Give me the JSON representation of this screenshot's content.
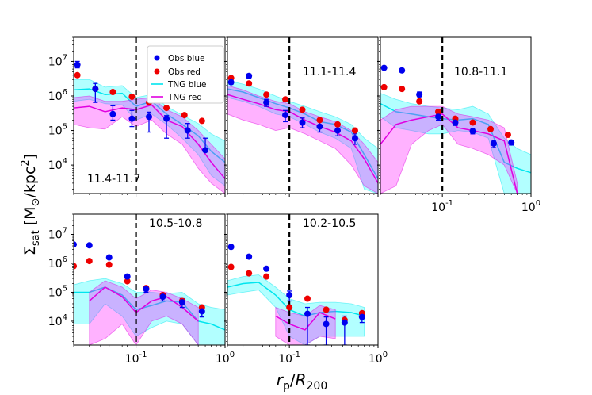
{
  "figure": {
    "ylabel_main": "Σ",
    "ylabel_sub": "sat",
    "ylabel_unit_open": " [M",
    "ylabel_sun": "⊙",
    "ylabel_unit_mid": "/kpc",
    "ylabel_exp": "2",
    "ylabel_unit_close": "]",
    "xlabel_r": "r",
    "xlabel_p": "p",
    "xlabel_slash": "/",
    "xlabel_R": "R",
    "xlabel_200": "200"
  },
  "legend": {
    "obs_blue": "Obs blue",
    "obs_red": "Obs red",
    "tng_blue": "TNG blue",
    "tng_red": "TNG red"
  },
  "colors": {
    "obs_blue": "#0000ee",
    "obs_red": "#ee0000",
    "tng_blue": "#00e5ee",
    "tng_red": "#e000e0",
    "tng_blue_fill": "#00ffff",
    "tng_red_fill": "#ff00ff"
  },
  "chart_data": [
    {
      "type": "line",
      "label": "11.4-11.7",
      "xlim": [
        0.02,
        1.0
      ],
      "ylim": [
        1500,
        50000000
      ],
      "xscale": "log",
      "yscale": "log",
      "vline_x": 0.1,
      "y_ticks": [
        "10^7",
        "10^6",
        "10^5",
        "10^4"
      ],
      "x_ticks": [],
      "obs_blue": {
        "x": [
          0.022,
          0.035,
          0.055,
          0.09,
          0.14,
          0.22,
          0.38,
          0.6
        ],
        "y": [
          8000000,
          1600000,
          300000,
          220000,
          250000,
          220000,
          100000,
          27000
        ],
        "err_lo": [
          6500000,
          650000,
          200000,
          130000,
          90000,
          60000,
          60000,
          25000
        ],
        "err_hi": [
          10000000,
          2300000,
          520000,
          380000,
          340000,
          270000,
          160000,
          60000
        ]
      },
      "obs_red": {
        "x": [
          0.022,
          0.035,
          0.055,
          0.09,
          0.14,
          0.22,
          0.35,
          0.55
        ],
        "y": [
          4000000,
          1600000,
          1300000,
          950000,
          650000,
          450000,
          280000,
          190000
        ]
      },
      "tng_blue": {
        "x": [
          0.02,
          0.03,
          0.045,
          0.07,
          0.1,
          0.15,
          0.22,
          0.33,
          0.5,
          0.7,
          1.0
        ],
        "y": [
          1500000,
          1600000,
          1100000,
          1200000,
          500000,
          700000,
          300000,
          150000,
          70000,
          25000,
          12000
        ],
        "lo": [
          700000,
          800000,
          600000,
          550000,
          200000,
          300000,
          150000,
          60000,
          20000,
          5000,
          2500
        ],
        "hi": [
          3000000,
          3000000,
          1800000,
          2000000,
          900000,
          1100000,
          500000,
          280000,
          160000,
          80000,
          50000
        ]
      },
      "tng_red": {
        "x": [
          0.02,
          0.03,
          0.045,
          0.07,
          0.1,
          0.15,
          0.22,
          0.33,
          0.5,
          0.7,
          1.0
        ],
        "y": [
          450000,
          500000,
          350000,
          450000,
          400000,
          550000,
          200000,
          130000,
          40000,
          12000,
          4000
        ],
        "lo": [
          150000,
          120000,
          110000,
          250000,
          130000,
          200000,
          80000,
          40000,
          8000,
          3000,
          1500
        ],
        "hi": [
          900000,
          1000000,
          700000,
          700000,
          800000,
          900000,
          400000,
          250000,
          100000,
          40000,
          15000
        ]
      }
    },
    {
      "type": "line",
      "label": "11.1-11.4",
      "xlim": [
        0.02,
        1.0
      ],
      "ylim": [
        1500,
        50000000
      ],
      "xscale": "log",
      "yscale": "log",
      "vline_x": 0.1,
      "y_ticks": [],
      "x_ticks": [],
      "obs_blue": {
        "x": [
          0.022,
          0.035,
          0.055,
          0.09,
          0.14,
          0.22,
          0.35,
          0.55
        ],
        "y": [
          2500000,
          3800000,
          650000,
          280000,
          170000,
          130000,
          100000,
          60000
        ],
        "err_lo": [
          2200000,
          3300000,
          500000,
          180000,
          120000,
          90000,
          70000,
          40000
        ],
        "err_hi": [
          2900000,
          4300000,
          800000,
          380000,
          230000,
          180000,
          140000,
          80000
        ]
      },
      "obs_red": {
        "x": [
          0.022,
          0.035,
          0.055,
          0.09,
          0.14,
          0.22,
          0.35,
          0.55
        ],
        "y": [
          3300000,
          2300000,
          1100000,
          800000,
          400000,
          200000,
          150000,
          100000
        ]
      },
      "tng_blue": {
        "x": [
          0.02,
          0.03,
          0.045,
          0.07,
          0.1,
          0.15,
          0.22,
          0.33,
          0.5,
          0.7,
          1.0
        ],
        "y": [
          1600000,
          1300000,
          900000,
          600000,
          450000,
          300000,
          180000,
          150000,
          90000,
          20000,
          4000
        ],
        "lo": [
          900000,
          700000,
          500000,
          300000,
          250000,
          150000,
          90000,
          60000,
          30000,
          2000,
          1500
        ],
        "hi": [
          2800000,
          2200000,
          1600000,
          1000000,
          700000,
          500000,
          350000,
          250000,
          150000,
          60000,
          30000
        ]
      },
      "tng_red": {
        "x": [
          0.02,
          0.03,
          0.045,
          0.07,
          0.1,
          0.15,
          0.22,
          0.33,
          0.5,
          0.7,
          1.0
        ],
        "y": [
          1100000,
          800000,
          600000,
          400000,
          350000,
          200000,
          130000,
          90000,
          50000,
          15000,
          3000
        ],
        "lo": [
          300000,
          200000,
          150000,
          100000,
          120000,
          80000,
          50000,
          30000,
          10000,
          2500,
          1500
        ],
        "hi": [
          2000000,
          1500000,
          1000000,
          700000,
          600000,
          350000,
          250000,
          180000,
          100000,
          40000,
          12000
        ]
      }
    },
    {
      "type": "line",
      "label": "10.8-11.1",
      "xlim": [
        0.02,
        1.0
      ],
      "ylim": [
        1500,
        50000000
      ],
      "xscale": "log",
      "yscale": "log",
      "vline_x": 0.1,
      "y_ticks": [],
      "x_ticks": [
        "10^-1",
        "10^0"
      ],
      "obs_blue": {
        "x": [
          0.022,
          0.035,
          0.055,
          0.09,
          0.14,
          0.22,
          0.38,
          0.6
        ],
        "y": [
          6500000,
          5500000,
          1100000,
          250000,
          170000,
          95000,
          42000,
          45000
        ],
        "err_lo": [
          6000000,
          5000000,
          950000,
          200000,
          140000,
          80000,
          32000,
          38000
        ],
        "err_hi": [
          7000000,
          6000000,
          1300000,
          300000,
          200000,
          115000,
          52000,
          52000
        ]
      },
      "obs_red": {
        "x": [
          0.022,
          0.035,
          0.055,
          0.09,
          0.14,
          0.22,
          0.35,
          0.55
        ],
        "y": [
          1800000,
          1600000,
          700000,
          350000,
          220000,
          170000,
          110000,
          75000
        ]
      },
      "tng_blue": {
        "x": [
          0.02,
          0.03,
          0.045,
          0.07,
          0.1,
          0.15,
          0.22,
          0.33,
          0.5,
          0.7,
          1.0
        ],
        "y": [
          600000,
          350000,
          300000,
          250000,
          220000,
          200000,
          220000,
          150000,
          12000,
          8000,
          6000
        ],
        "lo": [
          250000,
          120000,
          100000,
          80000,
          80000,
          100000,
          90000,
          60000,
          1500,
          1500,
          1500
        ],
        "hi": [
          1200000,
          800000,
          600000,
          500000,
          450000,
          400000,
          500000,
          300000,
          60000,
          30000,
          20000
        ]
      },
      "tng_red": {
        "x": [
          0.02,
          0.03,
          0.045,
          0.07,
          0.1,
          0.15,
          0.22,
          0.33,
          0.5,
          0.7
        ],
        "y": [
          40000,
          150000,
          200000,
          250000,
          300000,
          120000,
          100000,
          80000,
          50000,
          1500
        ],
        "lo": [
          1500,
          2500,
          40000,
          100000,
          150000,
          40000,
          30000,
          20000,
          10000,
          1500
        ],
        "hi": [
          200000,
          400000,
          500000,
          500000,
          500000,
          300000,
          250000,
          200000,
          120000,
          3000
        ]
      }
    },
    {
      "type": "line",
      "label": "10.5-10.8",
      "xlim": [
        0.02,
        1.0
      ],
      "ylim": [
        1500,
        50000000
      ],
      "xscale": "log",
      "yscale": "log",
      "vline_x": 0.1,
      "y_ticks": [
        "10^7",
        "10^6",
        "10^5",
        "10^4"
      ],
      "x_ticks": [
        "10^-1",
        "10^0"
      ],
      "obs_blue": {
        "x": [
          0.02,
          0.03,
          0.05,
          0.08,
          0.13,
          0.2,
          0.33,
          0.55
        ],
        "y": [
          4500000,
          4200000,
          1600000,
          350000,
          130000,
          70000,
          45000,
          22000
        ],
        "err_lo": [
          4200000,
          3900000,
          1400000,
          300000,
          100000,
          50000,
          30000,
          14000
        ],
        "err_hi": [
          4800000,
          4500000,
          1800000,
          400000,
          160000,
          90000,
          60000,
          30000
        ]
      },
      "obs_red": {
        "x": [
          0.02,
          0.03,
          0.05,
          0.08,
          0.13,
          0.2,
          0.33,
          0.55
        ],
        "y": [
          800000,
          1200000,
          900000,
          240000,
          140000,
          80000,
          50000,
          30000
        ]
      },
      "tng_blue": {
        "x": [
          0.02,
          0.03,
          0.045,
          0.07,
          0.1,
          0.15,
          0.22,
          0.33,
          0.5,
          0.7,
          1.0
        ],
        "y": [
          100000,
          100000,
          150000,
          80000,
          25000,
          35000,
          50000,
          45000,
          10000,
          8000,
          5000
        ],
        "lo": [
          8000,
          8000,
          40000,
          15000,
          3000,
          6000,
          10000,
          8000,
          1500,
          1500,
          1500
        ],
        "hi": [
          180000,
          250000,
          300000,
          200000,
          100000,
          100000,
          90000,
          100000,
          40000,
          30000,
          25000
        ]
      },
      "tng_red": {
        "x": [
          0.03,
          0.045,
          0.07,
          0.1,
          0.15,
          0.22,
          0.33,
          0.5
        ],
        "y": [
          50000,
          150000,
          70000,
          20000,
          50000,
          70000,
          30000,
          10000
        ],
        "lo": [
          1500,
          2500,
          8000,
          1500,
          10000,
          15000,
          8000,
          1500
        ],
        "hi": [
          100000,
          250000,
          150000,
          60000,
          120000,
          100000,
          60000,
          30000
        ]
      }
    },
    {
      "type": "line",
      "label": "10.2-10.5",
      "xlim": [
        0.02,
        1.0
      ],
      "ylim": [
        1500,
        50000000
      ],
      "xscale": "log",
      "yscale": "log",
      "vline_x": 0.1,
      "y_ticks": [],
      "x_ticks": [
        "10^-1",
        "10^0"
      ],
      "obs_blue": {
        "x": [
          0.022,
          0.035,
          0.055,
          0.1,
          0.16,
          0.26,
          0.42,
          0.66
        ],
        "y": [
          3700000,
          1700000,
          650000,
          80000,
          18000,
          8000,
          9000,
          14000
        ],
        "err_lo": [
          3400000,
          1500000,
          550000,
          50000,
          1500,
          1500,
          1500,
          9000
        ],
        "err_hi": [
          4000000,
          1900000,
          750000,
          110000,
          30000,
          14000,
          15000,
          18000
        ]
      },
      "obs_red": {
        "x": [
          0.022,
          0.035,
          0.055,
          0.1,
          0.16,
          0.26,
          0.42,
          0.66
        ],
        "y": [
          750000,
          450000,
          350000,
          30000,
          60000,
          25000,
          11000,
          19000
        ]
      },
      "tng_blue": {
        "x": [
          0.02,
          0.03,
          0.045,
          0.07,
          0.1,
          0.15,
          0.22,
          0.33,
          0.5,
          0.7
        ],
        "y": [
          150000,
          200000,
          220000,
          80000,
          25000,
          15000,
          20000,
          22000,
          20000,
          15000
        ],
        "lo": [
          80000,
          100000,
          120000,
          30000,
          3000,
          1500,
          3000,
          3000,
          3000,
          3000
        ],
        "hi": [
          250000,
          350000,
          400000,
          150000,
          60000,
          40000,
          45000,
          45000,
          40000,
          30000
        ]
      },
      "tng_red": {
        "x": [
          0.07,
          0.1,
          0.15,
          0.22,
          0.33
        ],
        "y": [
          15000,
          8000,
          5000,
          20000,
          12000
        ],
        "lo": [
          3000,
          1500,
          1500,
          3000,
          2500
        ],
        "hi": [
          30000,
          20000,
          15000,
          35000,
          25000
        ]
      }
    }
  ]
}
